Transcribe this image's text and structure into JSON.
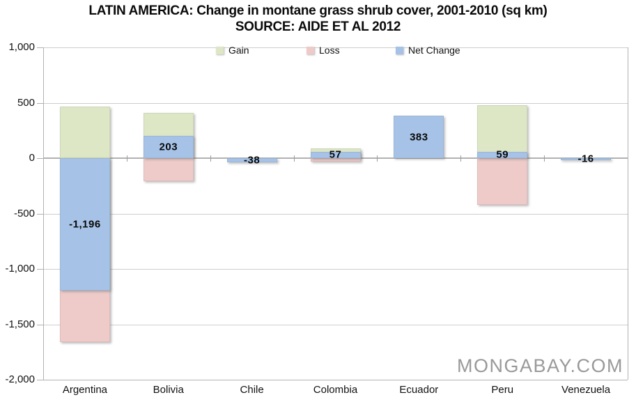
{
  "title": {
    "line1": "LATIN AMERICA: Change in montane grass shrub cover, 2001-2010 (sq km)",
    "line2": "SOURCE: AIDE ET AL 2012"
  },
  "watermark": "MONGABAY.COM",
  "legend": {
    "items": [
      {
        "label": "Gain",
        "color": "#dde7c6"
      },
      {
        "label": "Loss",
        "color": "#eecbc9"
      },
      {
        "label": "Net Change",
        "color": "#a6c3e7"
      }
    ]
  },
  "chart_data": {
    "type": "bar",
    "title": "LATIN AMERICA: Change in montane grass shrub cover, 2001-2010 (sq km)",
    "subtitle": "SOURCE: AIDE ET AL 2012",
    "categories": [
      "Argentina",
      "Bolivia",
      "Chile",
      "Colombia",
      "Ecuador",
      "Peru",
      "Venezuela"
    ],
    "series": [
      {
        "name": "Gain",
        "color": "#dde7c6",
        "values": [
          465,
          410,
          null,
          90,
          null,
          480,
          null
        ]
      },
      {
        "name": "Loss",
        "color": "#eecbc9",
        "values": [
          -1661,
          -207,
          null,
          -33,
          null,
          -421,
          null
        ]
      },
      {
        "name": "Net Change",
        "color": "#a6c3e7",
        "values": [
          -1196,
          203,
          -38,
          57,
          383,
          59,
          -16
        ],
        "labels": [
          "-1,196",
          "203",
          "-38",
          "57",
          "383",
          "59",
          "-16"
        ]
      }
    ],
    "xlabel": "",
    "ylabel": "",
    "ylim": [
      -2000,
      1000
    ],
    "yticks": {
      "values": [
        1000,
        500,
        0,
        -500,
        -1000,
        -1500,
        -2000
      ],
      "labels": [
        "1,000",
        "500",
        "0",
        "-500",
        "-1,000",
        "-1,500",
        "-2,000"
      ]
    },
    "grid": true,
    "legend_position": "top-inside",
    "note": "Net Change bars are drawn on top of Gain/Loss bars at the same x position; null = segment not visible (fully covered by Net Change bar)"
  }
}
